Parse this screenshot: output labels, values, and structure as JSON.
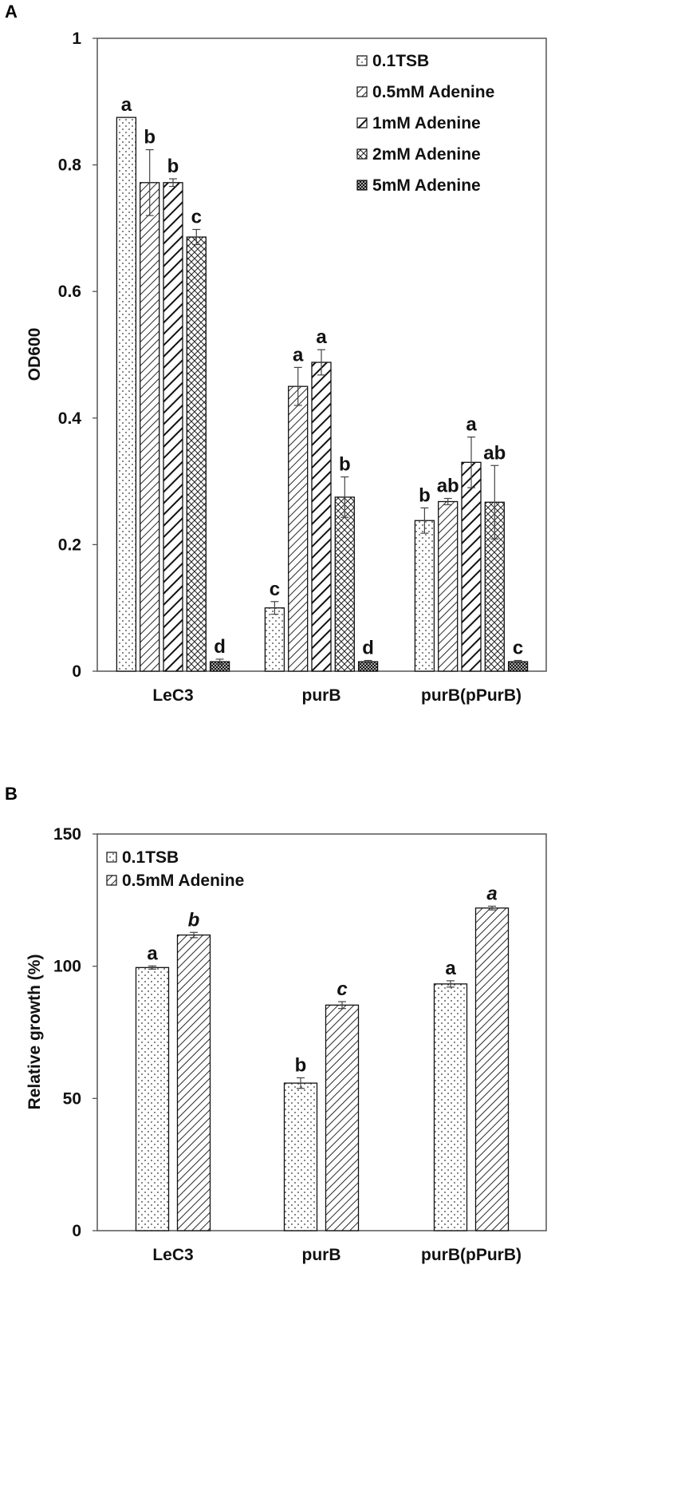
{
  "chart_data": [
    {
      "panel": "A",
      "type": "bar",
      "ylabel": "OD600",
      "xlabel": "",
      "ylim": [
        0,
        1
      ],
      "yticks": [
        0,
        0.2,
        0.4,
        0.6,
        0.8,
        1
      ],
      "ytick_labels": [
        "0",
        "0.2",
        "0.4",
        "0.6",
        "0.8",
        "1"
      ],
      "categories": [
        "LeC3",
        "purB",
        "purB(pPurB)"
      ],
      "legend_position": "top-right",
      "grid": false,
      "series": [
        {
          "name": "0.1TSB",
          "pattern": "dots",
          "values": [
            0.875,
            0.1,
            0.238
          ],
          "errors": [
            0.0,
            0.01,
            0.02
          ],
          "labels": [
            "a",
            "c",
            "b"
          ]
        },
        {
          "name": "0.5mM Adenine",
          "pattern": "hatch-fine",
          "values": [
            0.772,
            0.45,
            0.268
          ],
          "errors": [
            0.052,
            0.03,
            0.005
          ],
          "labels": [
            "b",
            "a",
            "ab"
          ]
        },
        {
          "name": "1mM Adenine",
          "pattern": "hatch-bold",
          "values": [
            0.772,
            0.488,
            0.33
          ],
          "errors": [
            0.006,
            0.02,
            0.04
          ],
          "labels": [
            "b",
            "a",
            "a"
          ]
        },
        {
          "name": "2mM Adenine",
          "pattern": "crosshatch",
          "values": [
            0.686,
            0.275,
            0.267
          ],
          "errors": [
            0.012,
            0.032,
            0.058
          ],
          "labels": [
            "c",
            "b",
            "ab"
          ]
        },
        {
          "name": "5mM Adenine",
          "pattern": "dense",
          "values": [
            0.015,
            0.015,
            0.015
          ],
          "errors": [
            0.004,
            0.002,
            0.002
          ],
          "labels": [
            "d",
            "d",
            "c"
          ]
        }
      ]
    },
    {
      "panel": "B",
      "type": "bar",
      "ylabel": "Relative growth (%)",
      "xlabel": "",
      "ylim": [
        0,
        150
      ],
      "yticks": [
        0,
        50,
        100,
        150
      ],
      "ytick_labels": [
        "0",
        "50",
        "100",
        "150"
      ],
      "categories": [
        "LeC3",
        "purB",
        "purB(pPurB)"
      ],
      "legend_position": "top-left",
      "grid": false,
      "series": [
        {
          "name": "0.1TSB",
          "pattern": "dots",
          "values": [
            99.5,
            55.8,
            93.3
          ],
          "errors": [
            0.6,
            2.0,
            1.2
          ],
          "labels": [
            "a",
            "b",
            "a"
          ],
          "label_style": "normal"
        },
        {
          "name": "0.5mM Adenine",
          "pattern": "hatch-fine",
          "values": [
            111.8,
            85.3,
            122
          ],
          "errors": [
            1.0,
            1.3,
            0.7
          ],
          "labels": [
            "b",
            "c",
            "a"
          ],
          "label_style": "italic"
        }
      ]
    }
  ]
}
